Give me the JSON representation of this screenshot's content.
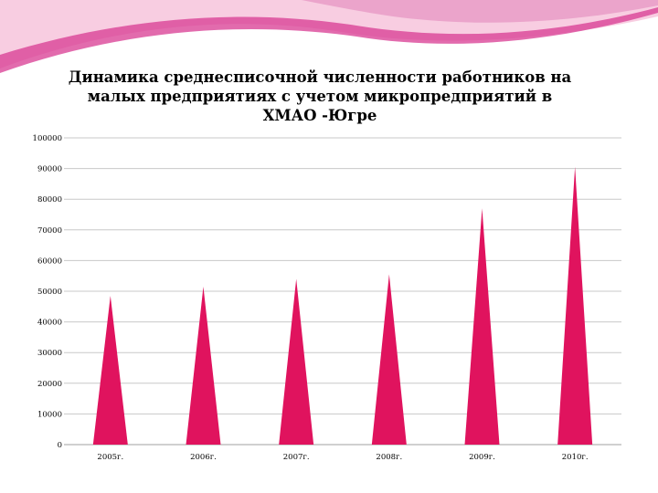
{
  "colors": {
    "accent": "#e0135e",
    "grid": "#c8c8c8",
    "swoosh_light": "#f3a7cf",
    "swoosh_dark": "#c60f79"
  },
  "chart_data": {
    "type": "bar",
    "bar_shape": "triangle",
    "title": "Динамика среднесписочной численности работников на малых предприятиях с учетом микропредприятий в ХМАО -Югре",
    "categories": [
      "2005г.",
      "2006г.",
      "2007г.",
      "2008г.",
      "2009г.",
      "2010г."
    ],
    "values": [
      48500,
      51500,
      54000,
      55500,
      77000,
      90500
    ],
    "ylim": [
      0,
      100000
    ],
    "yticks": [
      0,
      10000,
      20000,
      30000,
      40000,
      50000,
      60000,
      70000,
      80000,
      90000,
      100000
    ],
    "grid": true,
    "legend": "none"
  }
}
